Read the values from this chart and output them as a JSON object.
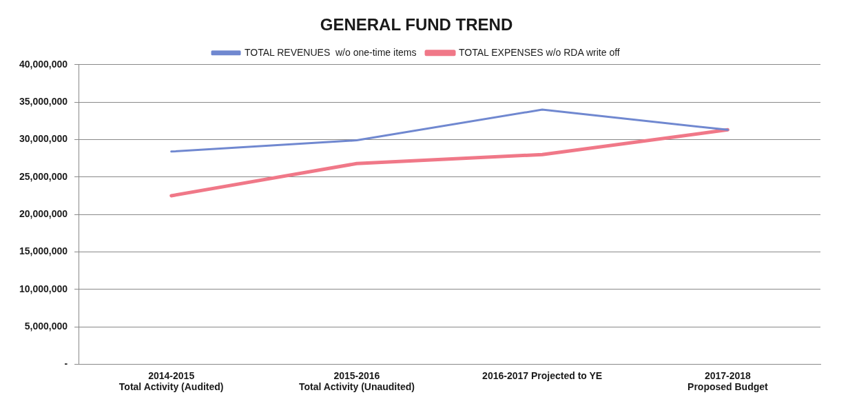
{
  "chart_data": {
    "type": "line",
    "title": "GENERAL FUND TREND",
    "categories": [
      "2014-2015\nTotal Activity (Audited)",
      "2015-2016\nTotal Activity (Unaudited)",
      "2016-2017 Projected to YE",
      "2017-2018\nProposed Budget"
    ],
    "series": [
      {
        "name": "TOTAL REVENUES  w/o one-time items",
        "color": "#7088d0",
        "values": [
          28400000,
          29900000,
          34000000,
          31300000
        ]
      },
      {
        "name": "TOTAL EXPENSES w/o RDA write off",
        "color": "#f07888",
        "values": [
          22500000,
          26800000,
          28000000,
          31300000
        ]
      }
    ],
    "ylim": [
      0,
      40000000
    ],
    "yticks": [
      {
        "value": 0,
        "label": "-"
      },
      {
        "value": 5000000,
        "label": "5,000,000"
      },
      {
        "value": 10000000,
        "label": "10,000,000"
      },
      {
        "value": 15000000,
        "label": "15,000,000"
      },
      {
        "value": 20000000,
        "label": "20,000,000"
      },
      {
        "value": 25000000,
        "label": "25,000,000"
      },
      {
        "value": 30000000,
        "label": "30,000,000"
      },
      {
        "value": 35000000,
        "label": "35,000,000"
      },
      {
        "value": 40000000,
        "label": "40,000,000"
      }
    ],
    "grid": "y",
    "legend": "top",
    "marker": "none",
    "line_style": "solid"
  }
}
